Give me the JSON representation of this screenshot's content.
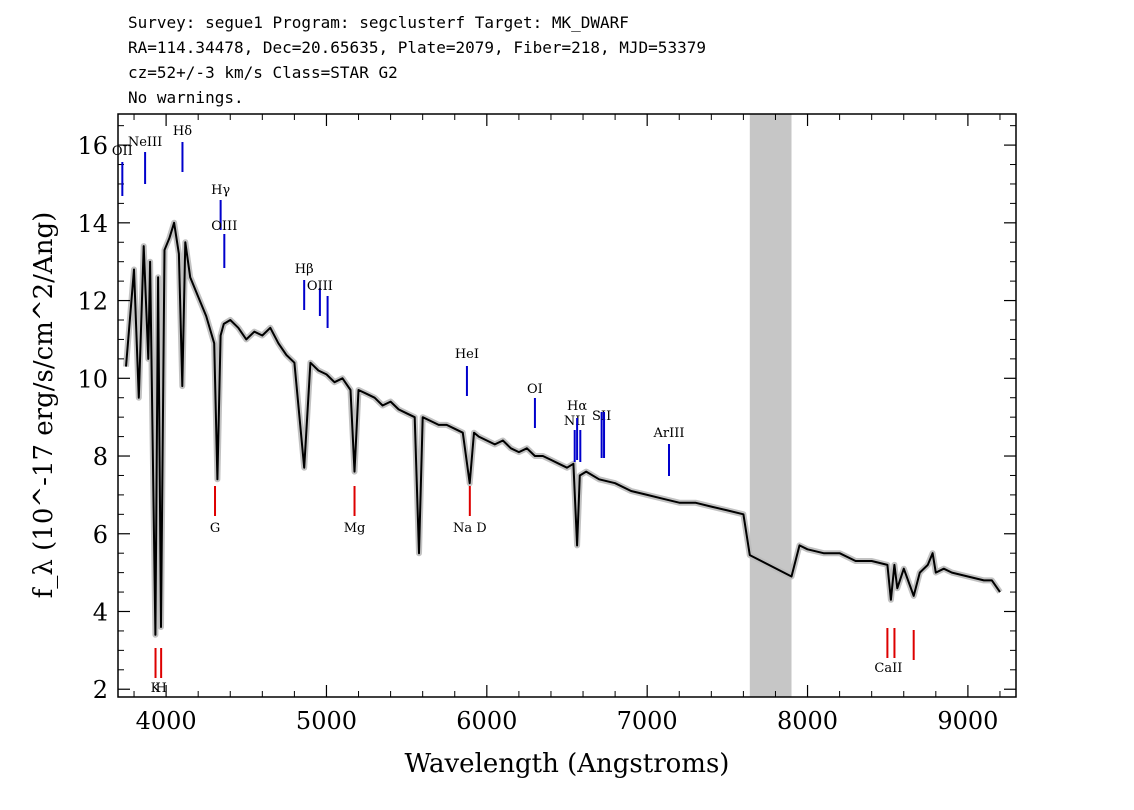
{
  "header": {
    "line1": "Survey: segue1 Program: segclusterf Target: MK_DWARF",
    "line2": "RA=114.34478, Dec=20.65635, Plate=2079, Fiber=218, MJD=53379",
    "line3": "cz=52+/-3 km/s Class=STAR G2",
    "line4": "No warnings."
  },
  "chart_data": {
    "type": "line",
    "xlabel": "Wavelength (Angstroms)",
    "ylabel": "f_λ (10^-17 erg/s/cm^2/Ang)",
    "xlim": [
      3700,
      9300
    ],
    "ylim": [
      1.8,
      16.8
    ],
    "x_ticks": [
      4000,
      5000,
      6000,
      7000,
      8000,
      9000
    ],
    "y_ticks": [
      2,
      4,
      6,
      8,
      10,
      12,
      14,
      16
    ],
    "masked_region": [
      7640,
      7900
    ],
    "series": [
      {
        "x": [
          3750,
          3800,
          3830,
          3860,
          3889,
          3900,
          3933,
          3950,
          3968,
          3990,
          4020,
          4050,
          4080,
          4101,
          4120,
          4150,
          4200,
          4250,
          4300,
          4320,
          4340,
          4360,
          4400,
          4450,
          4500,
          4550,
          4600,
          4650,
          4700,
          4750,
          4800,
          4861,
          4900,
          4950,
          5000,
          5050,
          5100,
          5150,
          5175,
          5200,
          5250,
          5300,
          5350,
          5400,
          5450,
          5500,
          5550,
          5577,
          5600,
          5650,
          5700,
          5750,
          5800,
          5850,
          5893,
          5920,
          5950,
          6000,
          6050,
          6100,
          6150,
          6200,
          6250,
          6300,
          6350,
          6400,
          6450,
          6500,
          6540,
          6563,
          6580,
          6620,
          6700,
          6800,
          6900,
          7000,
          7100,
          7200,
          7300,
          7400,
          7500,
          7600,
          7640,
          7900,
          7950,
          8000,
          8100,
          8200,
          8300,
          8400,
          8498,
          8520,
          8542,
          8560,
          8600,
          8662,
          8700,
          8750,
          8780,
          8800,
          8850,
          8900,
          9000,
          9100,
          9150,
          9200
        ],
        "y": [
          10.3,
          12.8,
          9.5,
          13.4,
          10.5,
          13.0,
          3.4,
          12.6,
          3.6,
          13.3,
          13.6,
          14.0,
          13.2,
          9.8,
          13.5,
          12.6,
          12.1,
          11.6,
          10.9,
          7.4,
          11.1,
          11.4,
          11.5,
          11.3,
          11.0,
          11.2,
          11.1,
          11.3,
          10.9,
          10.6,
          10.4,
          7.7,
          10.4,
          10.2,
          10.1,
          9.9,
          10.0,
          9.7,
          7.6,
          9.7,
          9.6,
          9.5,
          9.3,
          9.4,
          9.2,
          9.1,
          9.0,
          5.5,
          9.0,
          8.9,
          8.8,
          8.8,
          8.7,
          8.6,
          7.3,
          8.6,
          8.5,
          8.4,
          8.3,
          8.4,
          8.2,
          8.1,
          8.2,
          8.0,
          8.0,
          7.9,
          7.8,
          7.7,
          7.8,
          5.7,
          7.5,
          7.6,
          7.4,
          7.3,
          7.1,
          7.0,
          6.9,
          6.8,
          6.8,
          6.7,
          6.6,
          6.5,
          5.45,
          4.9,
          5.7,
          5.6,
          5.5,
          5.5,
          5.3,
          5.3,
          5.2,
          4.3,
          5.2,
          4.6,
          5.1,
          4.4,
          5.0,
          5.2,
          5.5,
          5.0,
          5.1,
          5.0,
          4.9,
          4.8,
          4.8,
          4.5
        ]
      }
    ],
    "line_markers": [
      {
        "label": "OII",
        "x": 3727,
        "color": "#0000cc"
      },
      {
        "label": "NeIII",
        "x": 3869,
        "color": "#0000cc"
      },
      {
        "label": "Hδ",
        "x": 4102,
        "color": "#0000cc"
      },
      {
        "label": "Hγ",
        "x": 4340,
        "color": "#0000cc"
      },
      {
        "label": "OIII",
        "x": 4363,
        "color": "#0000cc"
      },
      {
        "label": "Hβ",
        "x": 4861,
        "color": "#0000cc"
      },
      {
        "label": "OIII",
        "x": 4959,
        "color": "#0000cc"
      },
      {
        "label": "OIII",
        "x": 5007,
        "color": "#0000cc"
      },
      {
        "label": "HeI",
        "x": 5876,
        "color": "#0000cc"
      },
      {
        "label": "OI",
        "x": 6300,
        "color": "#0000cc"
      },
      {
        "label": "NII",
        "x": 6548,
        "color": "#0000cc"
      },
      {
        "label": "Hα",
        "x": 6563,
        "color": "#0000cc"
      },
      {
        "label": "NII",
        "x": 6583,
        "color": "#0000cc"
      },
      {
        "label": "SII",
        "x": 6716,
        "color": "#0000cc"
      },
      {
        "label": "SII",
        "x": 6731,
        "color": "#0000cc"
      },
      {
        "label": "ArIII",
        "x": 7136,
        "color": "#0000cc"
      },
      {
        "label": "K",
        "x": 3934,
        "color": "#dd0000"
      },
      {
        "label": "H",
        "x": 3969,
        "color": "#dd0000"
      },
      {
        "label": "G",
        "x": 4305,
        "color": "#dd0000"
      },
      {
        "label": "Mg",
        "x": 5175,
        "color": "#dd0000"
      },
      {
        "label": "Na D",
        "x": 5894,
        "color": "#dd0000"
      },
      {
        "label": "CaII",
        "x": 8498,
        "color": "#dd0000"
      },
      {
        "label": "CaII",
        "x": 8542,
        "color": "#dd0000"
      },
      {
        "label": "CaII",
        "x": 8662,
        "color": "#dd0000"
      }
    ]
  },
  "colors": {
    "flux": "#000000",
    "error_band": "#bbbbbb",
    "mask": "#c6c6c6",
    "emission": "#0000cc",
    "absorption": "#dd0000"
  }
}
